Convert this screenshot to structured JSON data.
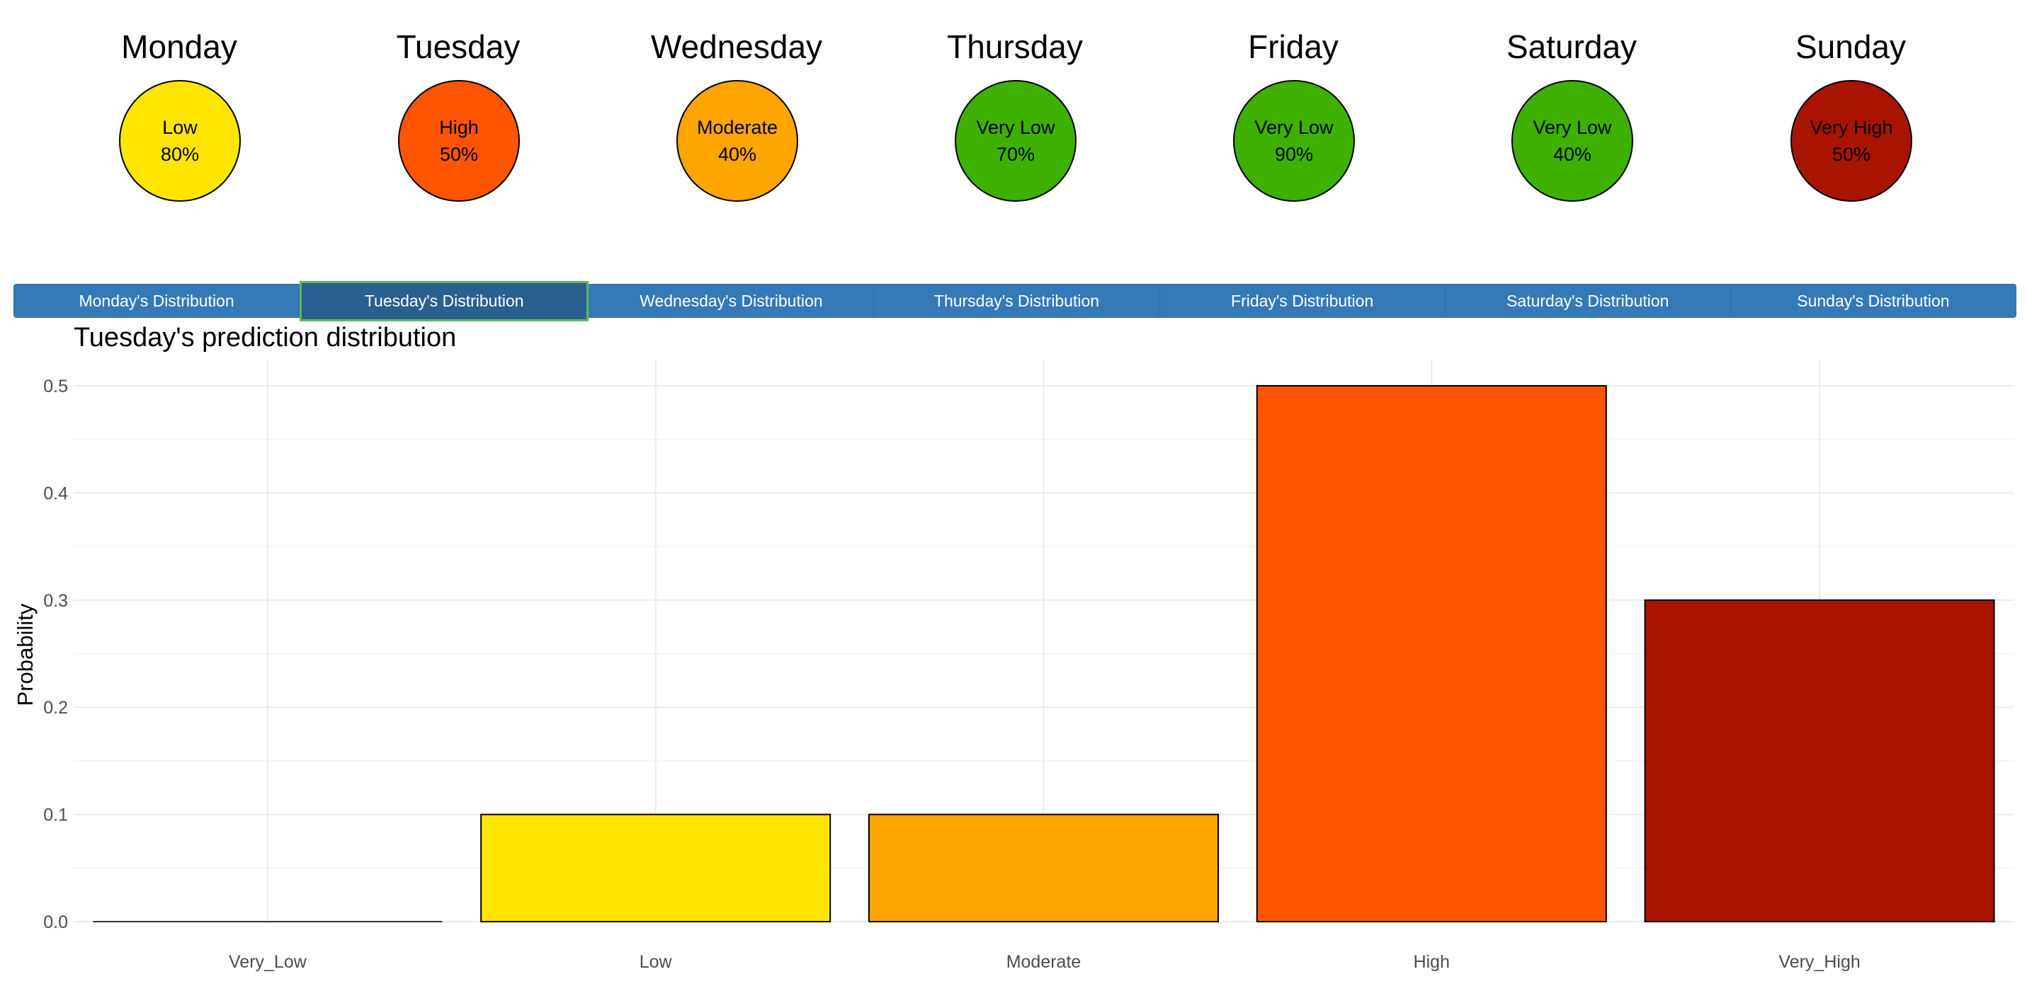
{
  "days": [
    {
      "name": "Monday",
      "level": "Low",
      "pct": "80%",
      "color": "#FFE500"
    },
    {
      "name": "Tuesday",
      "level": "High",
      "pct": "50%",
      "color": "#FF5500"
    },
    {
      "name": "Wednesday",
      "level": "Moderate",
      "pct": "40%",
      "color": "#FFA500"
    },
    {
      "name": "Thursday",
      "level": "Very Low",
      "pct": "70%",
      "color": "#3DB000"
    },
    {
      "name": "Friday",
      "level": "Very Low",
      "pct": "90%",
      "color": "#3DB000"
    },
    {
      "name": "Saturday",
      "level": "Very Low",
      "pct": "40%",
      "color": "#3DB000"
    },
    {
      "name": "Sunday",
      "level": "Very High",
      "pct": "50%",
      "color": "#A81400"
    }
  ],
  "tabs": [
    {
      "label": "Monday's Distribution",
      "active": false
    },
    {
      "label": "Tuesday's Distribution",
      "active": true
    },
    {
      "label": "Wednesday's Distribution",
      "active": false
    },
    {
      "label": "Thursday's Distribution",
      "active": false
    },
    {
      "label": "Friday's Distribution",
      "active": false
    },
    {
      "label": "Saturday's Distribution",
      "active": false
    },
    {
      "label": "Sunday's Distribution",
      "active": false
    }
  ],
  "chart_data": {
    "type": "bar",
    "title": "Tuesday's  prediction distribution",
    "xlabel": "",
    "ylabel": "Probability",
    "categories": [
      "Very_Low",
      "Low",
      "Moderate",
      "High",
      "Very_High"
    ],
    "values": [
      0.0,
      0.1,
      0.1,
      0.5,
      0.3
    ],
    "colors": [
      "#3DB000",
      "#FFE500",
      "#FFA500",
      "#FF5500",
      "#A81400"
    ],
    "ylim": [
      0,
      0.5
    ],
    "yticks": [
      "0.0",
      "0.1",
      "0.2",
      "0.3",
      "0.4",
      "0.5"
    ],
    "grid": true,
    "legend": "none"
  }
}
